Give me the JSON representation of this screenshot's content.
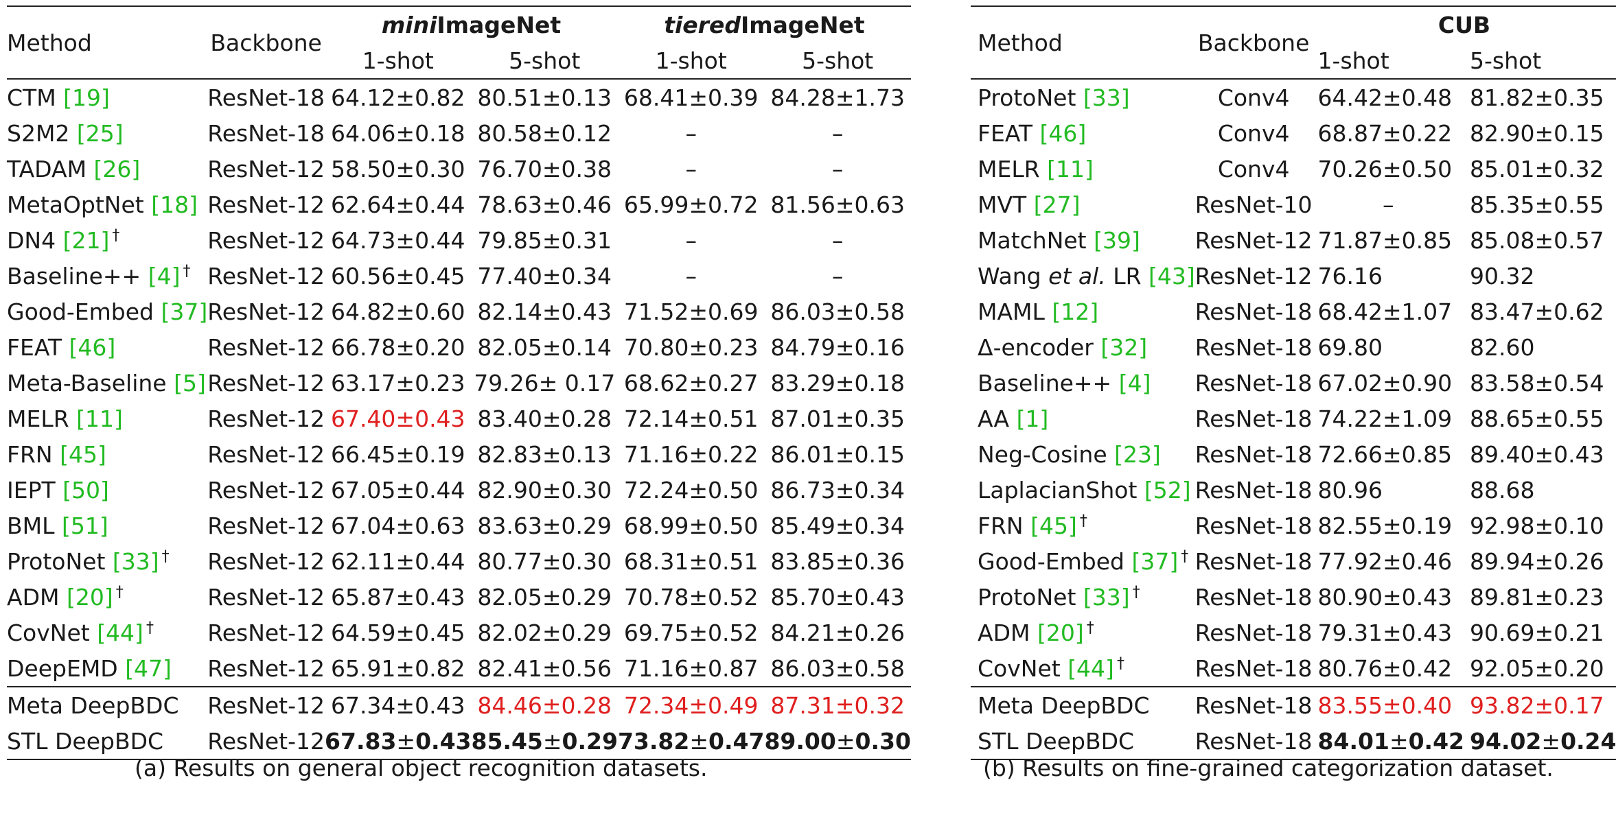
{
  "table_a": {
    "header": {
      "method": "Method",
      "backbone": "Backbone",
      "dataset1_italic": "mini",
      "dataset1_rest": "ImageNet",
      "dataset2_italic": "tiered",
      "dataset2_rest": "ImageNet",
      "shot1": "1-shot",
      "shot5": "5-shot"
    },
    "rows": [
      {
        "name": "CTM ",
        "cite": "[19]",
        "dag": "",
        "backbone": "ResNet-18",
        "m1": "64.12±0.82",
        "m5": "80.51±0.13",
        "t1": "68.41±0.39",
        "t5": "84.28±1.73"
      },
      {
        "name": "S2M2 ",
        "cite": "[25]",
        "dag": "",
        "backbone": "ResNet-18",
        "m1": "64.06±0.18",
        "m5": "80.58±0.12",
        "t1": "–",
        "t5": "–"
      },
      {
        "name": "TADAM ",
        "cite": "[26]",
        "dag": "",
        "backbone": "ResNet-12",
        "m1": "58.50±0.30",
        "m5": "76.70±0.38",
        "t1": "–",
        "t5": "–"
      },
      {
        "name": "MetaOptNet ",
        "cite": "[18]",
        "dag": "",
        "backbone": "ResNet-12",
        "m1": "62.64±0.44",
        "m5": "78.63±0.46",
        "t1": "65.99±0.72",
        "t5": "81.56±0.63"
      },
      {
        "name": "DN4 ",
        "cite": "[21]",
        "dag": "†",
        "backbone": "ResNet-12",
        "m1": "64.73±0.44",
        "m5": "79.85±0.31",
        "t1": "–",
        "t5": "–"
      },
      {
        "name": "Baseline++ ",
        "cite": "[4]",
        "dag": "†",
        "backbone": "ResNet-12",
        "m1": "60.56±0.45",
        "m5": "77.40±0.34",
        "t1": "–",
        "t5": "–"
      },
      {
        "name": "Good-Embed ",
        "cite": "[37]",
        "dag": "",
        "backbone": "ResNet-12",
        "m1": "64.82±0.60",
        "m5": "82.14±0.43",
        "t1": "71.52±0.69",
        "t5": "86.03±0.58"
      },
      {
        "name": "FEAT  ",
        "cite": "[46]",
        "dag": "",
        "backbone": "ResNet-12",
        "m1": "66.78±0.20",
        "m5": "82.05±0.14",
        "t1": "70.80±0.23",
        "t5": "84.79±0.16"
      },
      {
        "name": "Meta-Baseline ",
        "cite": "[5]",
        "dag": "",
        "backbone": "ResNet-12",
        "m1": "63.17±0.23",
        "m5": "79.26± 0.17",
        "t1": "68.62±0.27",
        "t5": "83.29±0.18"
      },
      {
        "name": "MELR ",
        "cite": "[11]",
        "dag": "",
        "backbone": "ResNet-12",
        "m1": "67.40±0.43",
        "m5": "83.40±0.28",
        "t1": "72.14±0.51",
        "t5": "87.01±0.35"
      },
      {
        "name": "FRN ",
        "cite": "[45]",
        "dag": "",
        "backbone": "ResNet-12",
        "m1": "66.45±0.19",
        "m5": "82.83±0.13",
        "t1": "71.16±0.22",
        "t5": "86.01±0.15"
      },
      {
        "name": "IEPT ",
        "cite": "[50]",
        "dag": "",
        "backbone": "ResNet-12",
        "m1": "67.05±0.44",
        "m5": "82.90±0.30",
        "t1": "72.24±0.50",
        "t5": "86.73±0.34"
      },
      {
        "name": "BML ",
        "cite": "[51]",
        "dag": "",
        "backbone": "ResNet-12",
        "m1": "67.04±0.63",
        "m5": "83.63±0.29",
        "t1": "68.99±0.50",
        "t5": "85.49±0.34"
      },
      {
        "name": "ProtoNet ",
        "cite": "[33]",
        "dag": "†",
        "backbone": "ResNet-12",
        "m1": "62.11±0.44",
        "m5": "80.77±0.30",
        "t1": "68.31±0.51",
        "t5": "83.85±0.36"
      },
      {
        "name": "ADM ",
        "cite": "[20]",
        "dag": "†",
        "backbone": "ResNet-12",
        "m1": "65.87±0.43",
        "m5": "82.05±0.29",
        "t1": "70.78±0.52",
        "t5": "85.70±0.43"
      },
      {
        "name": "CovNet ",
        "cite": "[44]",
        "dag": "†",
        "backbone": "ResNet-12",
        "m1": "64.59±0.45",
        "m5": "82.02±0.29",
        "t1": "69.75±0.52",
        "t5": "84.21±0.26"
      },
      {
        "name": "DeepEMD ",
        "cite": "[47]",
        "dag": "",
        "backbone": "ResNet-12",
        "m1": "65.91±0.82",
        "m5": "82.41±0.56",
        "t1": "71.16±0.87",
        "t5": "86.03±0.58"
      }
    ],
    "ours": [
      {
        "name": "Meta DeepBDC",
        "backbone": "ResNet-12",
        "m1": "67.34±0.43",
        "m5": "84.46±0.28",
        "t1": "72.34±0.49",
        "t5": "87.31±0.32"
      },
      {
        "name": "STL DeepBDC",
        "backbone": "ResNet-12",
        "m1": "67.83±0.43",
        "m5": "85.45±0.29",
        "t1": "73.82±0.47",
        "t5": "89.00±0.30"
      }
    ],
    "caption": "(a)  Results on general object recognition datasets."
  },
  "table_b": {
    "header": {
      "method": "Method",
      "backbone": "Backbone",
      "dataset": "CUB",
      "shot1": "1-shot",
      "shot5": "5-shot"
    },
    "rows": [
      {
        "name": "ProtoNet ",
        "cite": "[33]",
        "dag": "",
        "backbone": "Conv4",
        "s1": "64.42±0.48",
        "s5": "81.82±0.35"
      },
      {
        "name": "FEAT ",
        "cite": "[46]",
        "dag": "",
        "backbone": "Conv4",
        "s1": "68.87±0.22",
        "s5": "82.90±0.15"
      },
      {
        "name": "MELR ",
        "cite": "[11]",
        "dag": "",
        "backbone": "Conv4",
        "s1": "70.26±0.50",
        "s5": "85.01±0.32"
      },
      {
        "name": "MVT ",
        "cite": "[27]",
        "dag": "",
        "backbone": "ResNet-10",
        "s1": "–",
        "s5": "85.35±0.55"
      },
      {
        "name": "MatchNet ",
        "cite": "[39]",
        "dag": "",
        "backbone": "ResNet-12",
        "s1": "71.87±0.85",
        "s5": "85.08±0.57"
      },
      {
        "name": "Wang ",
        "italic": "et al.",
        "name_tail": " LR ",
        "cite": "[43]",
        "dag": "",
        "backbone": "ResNet-12",
        "s1": "76.16",
        "s5": "90.32"
      },
      {
        "name": "MAML ",
        "cite": "[12]",
        "dag": "",
        "backbone": "ResNet-18",
        "s1": "68.42±1.07",
        "s5": "83.47±0.62"
      },
      {
        "name": "Δ-encoder ",
        "cite": "[32]",
        "dag": "",
        "backbone": "ResNet-18",
        "s1": "69.80",
        "s5": "82.60"
      },
      {
        "name": "Baseline++ ",
        "cite": "[4]",
        "dag": "",
        "backbone": "ResNet-18",
        "s1": "67.02±0.90",
        "s5": "83.58±0.54"
      },
      {
        "name": "AA ",
        "cite": "[1]",
        "dag": "",
        "backbone": "ResNet-18",
        "s1": "74.22±1.09",
        "s5": "88.65±0.55"
      },
      {
        "name": "Neg-Cosine ",
        "cite": "[23]",
        "dag": "",
        "backbone": "ResNet-18",
        "s1": "72.66±0.85",
        "s5": "89.40±0.43"
      },
      {
        "name": "LaplacianShot ",
        "cite": "[52]",
        "dag": "",
        "backbone": "ResNet-18",
        "s1": "80.96",
        "s5": "88.68"
      },
      {
        "name": "FRN ",
        "cite": "[45]",
        "dag": "†",
        "backbone": "ResNet-18",
        "s1": "82.55±0.19",
        "s5": "92.98±0.10"
      },
      {
        "name": "Good-Embed ",
        "cite": "[37]",
        "dag": "†",
        "backbone": "ResNet-18",
        "s1": "77.92±0.46",
        "s5": "89.94±0.26"
      },
      {
        "name": "ProtoNet ",
        "cite": "[33]",
        "dag": "†",
        "backbone": "ResNet-18",
        "s1": "80.90±0.43",
        "s5": "89.81±0.23"
      },
      {
        "name": "ADM ",
        "cite": "[20]",
        "dag": "†",
        "backbone": "ResNet-18",
        "s1": "79.31±0.43",
        "s5": "90.69±0.21"
      },
      {
        "name": "CovNet ",
        "cite": "[44]",
        "dag": "†",
        "backbone": "ResNet-18",
        "s1": "80.76±0.42",
        "s5": "92.05±0.20"
      }
    ],
    "ours": [
      {
        "name": "Meta DeepBDC",
        "backbone": "ResNet-18",
        "s1": "83.55±0.40",
        "s5": "93.82±0.17"
      },
      {
        "name": "STL DeepBDC",
        "backbone": "ResNet-18",
        "s1": "84.01±0.42",
        "s5": "94.02±0.24"
      }
    ],
    "caption": "(b) Results on fine-grained categorization dataset."
  },
  "colors": {
    "citation": "#22bb22",
    "second_best": "#e02020",
    "text": "#1a1a1a"
  }
}
